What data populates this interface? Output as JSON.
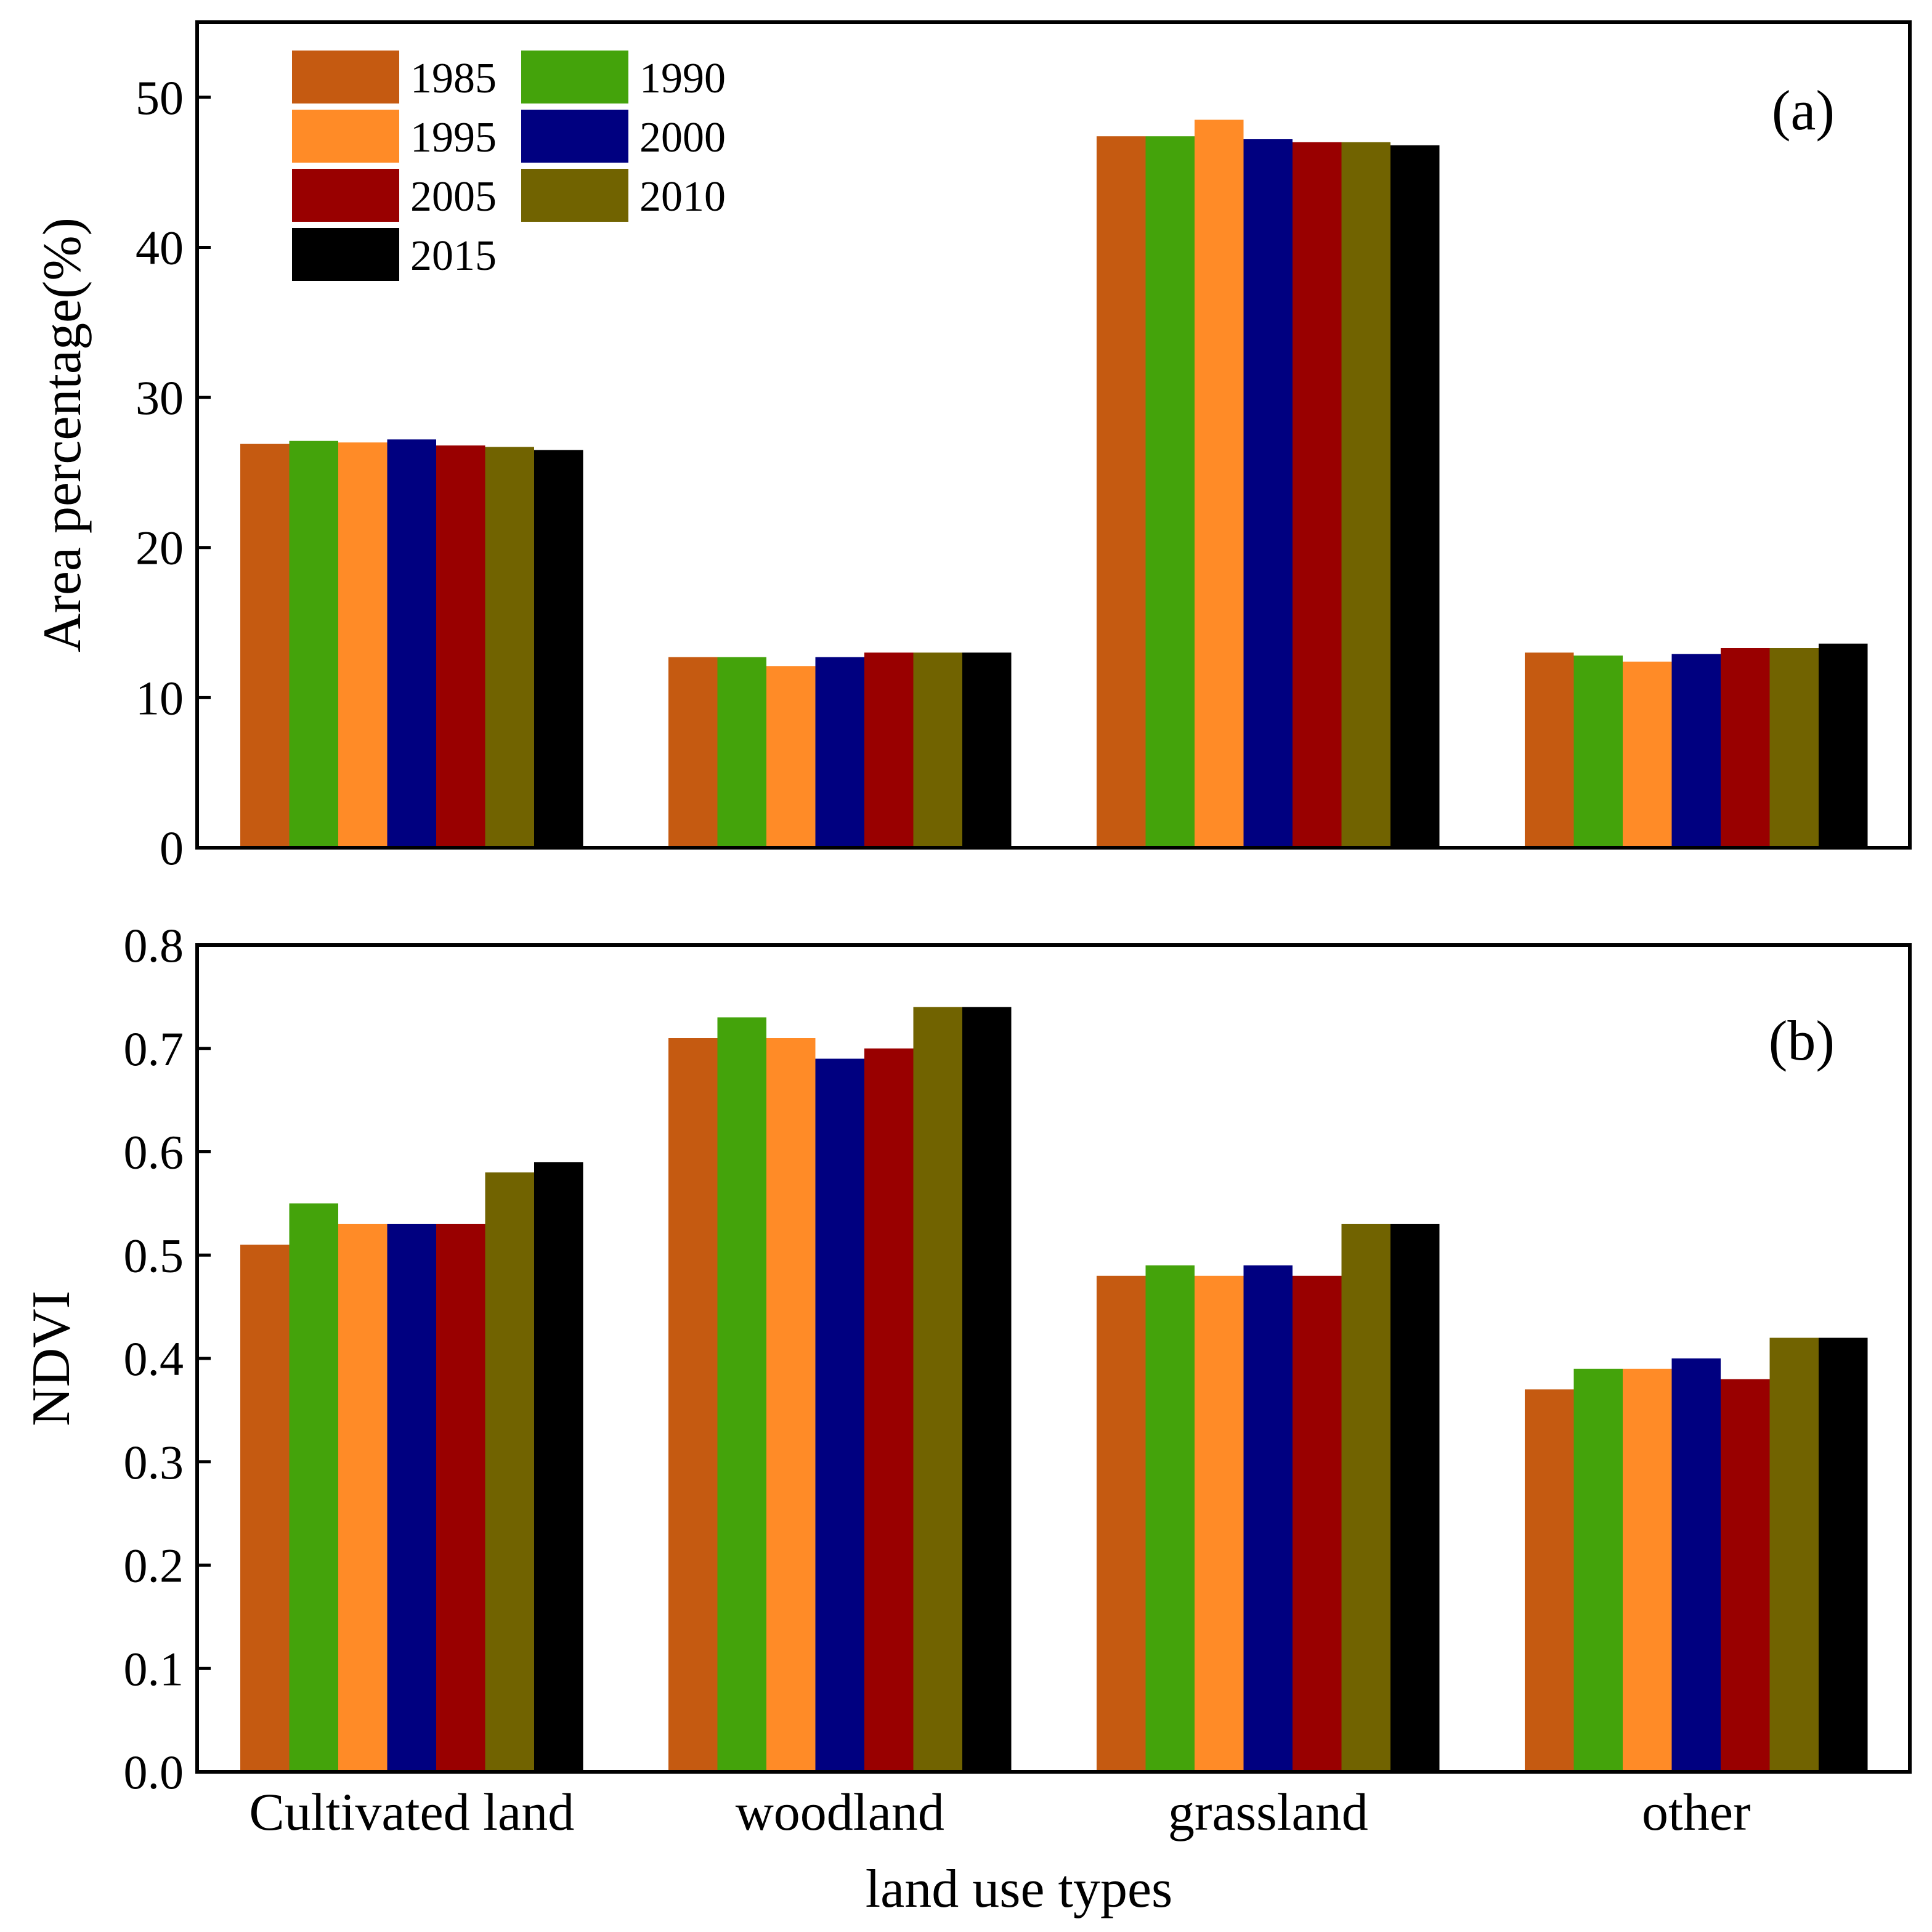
{
  "chart_data": [
    {
      "type": "bar",
      "panel": "(a)",
      "categories": [
        "Cultivated land",
        "woodland",
        "grassland",
        "other"
      ],
      "series": [
        {
          "name": "1985",
          "color": "#C55A11",
          "values": [
            26.9,
            12.7,
            47.4,
            13.0
          ]
        },
        {
          "name": "1990",
          "color": "#44A30B",
          "values": [
            27.1,
            12.7,
            47.4,
            12.8
          ]
        },
        {
          "name": "1995",
          "color": "#FF8B27",
          "values": [
            27.0,
            12.1,
            48.5,
            12.4
          ]
        },
        {
          "name": "2000",
          "color": "#000080",
          "values": [
            27.2,
            12.7,
            47.2,
            12.9
          ]
        },
        {
          "name": "2005",
          "color": "#990000",
          "values": [
            26.8,
            13.0,
            47.0,
            13.3
          ]
        },
        {
          "name": "2010",
          "color": "#716300",
          "values": [
            26.7,
            13.0,
            47.0,
            13.3
          ]
        },
        {
          "name": "2015",
          "color": "#000000",
          "values": [
            26.5,
            13.0,
            46.8,
            13.6
          ]
        }
      ],
      "ylabel": "Area percentage(%)",
      "ylim": [
        0,
        55
      ],
      "yticks": [
        "0",
        "10",
        "20",
        "30",
        "40",
        "50"
      ],
      "ytick_values": [
        0,
        10,
        20,
        30,
        40,
        50
      ],
      "legend": "top-left",
      "grid": false
    },
    {
      "type": "bar",
      "panel": "(b)",
      "categories": [
        "Cultivated land",
        "woodland",
        "grassland",
        "other"
      ],
      "series": [
        {
          "name": "1985",
          "color": "#C55A11",
          "values": [
            0.51,
            0.71,
            0.48,
            0.37
          ]
        },
        {
          "name": "1990",
          "color": "#44A30B",
          "values": [
            0.55,
            0.73,
            0.49,
            0.39
          ]
        },
        {
          "name": "1995",
          "color": "#FF8B27",
          "values": [
            0.53,
            0.71,
            0.48,
            0.39
          ]
        },
        {
          "name": "2000",
          "color": "#000080",
          "values": [
            0.53,
            0.69,
            0.49,
            0.4
          ]
        },
        {
          "name": "2005",
          "color": "#990000",
          "values": [
            0.53,
            0.7,
            0.48,
            0.38
          ]
        },
        {
          "name": "2010",
          "color": "#716300",
          "values": [
            0.58,
            0.74,
            0.53,
            0.42
          ]
        },
        {
          "name": "2015",
          "color": "#000000",
          "values": [
            0.59,
            0.74,
            0.53,
            0.42
          ]
        }
      ],
      "ylabel": "NDVI",
      "xlabel": "land use types",
      "ylim": [
        0,
        0.8
      ],
      "yticks": [
        "0.0",
        "0.1",
        "0.2",
        "0.3",
        "0.4",
        "0.5",
        "0.6",
        "0.7",
        "0.8"
      ],
      "ytick_values": [
        0,
        0.1,
        0.2,
        0.3,
        0.4,
        0.5,
        0.6,
        0.7,
        0.8
      ],
      "grid": false
    }
  ]
}
